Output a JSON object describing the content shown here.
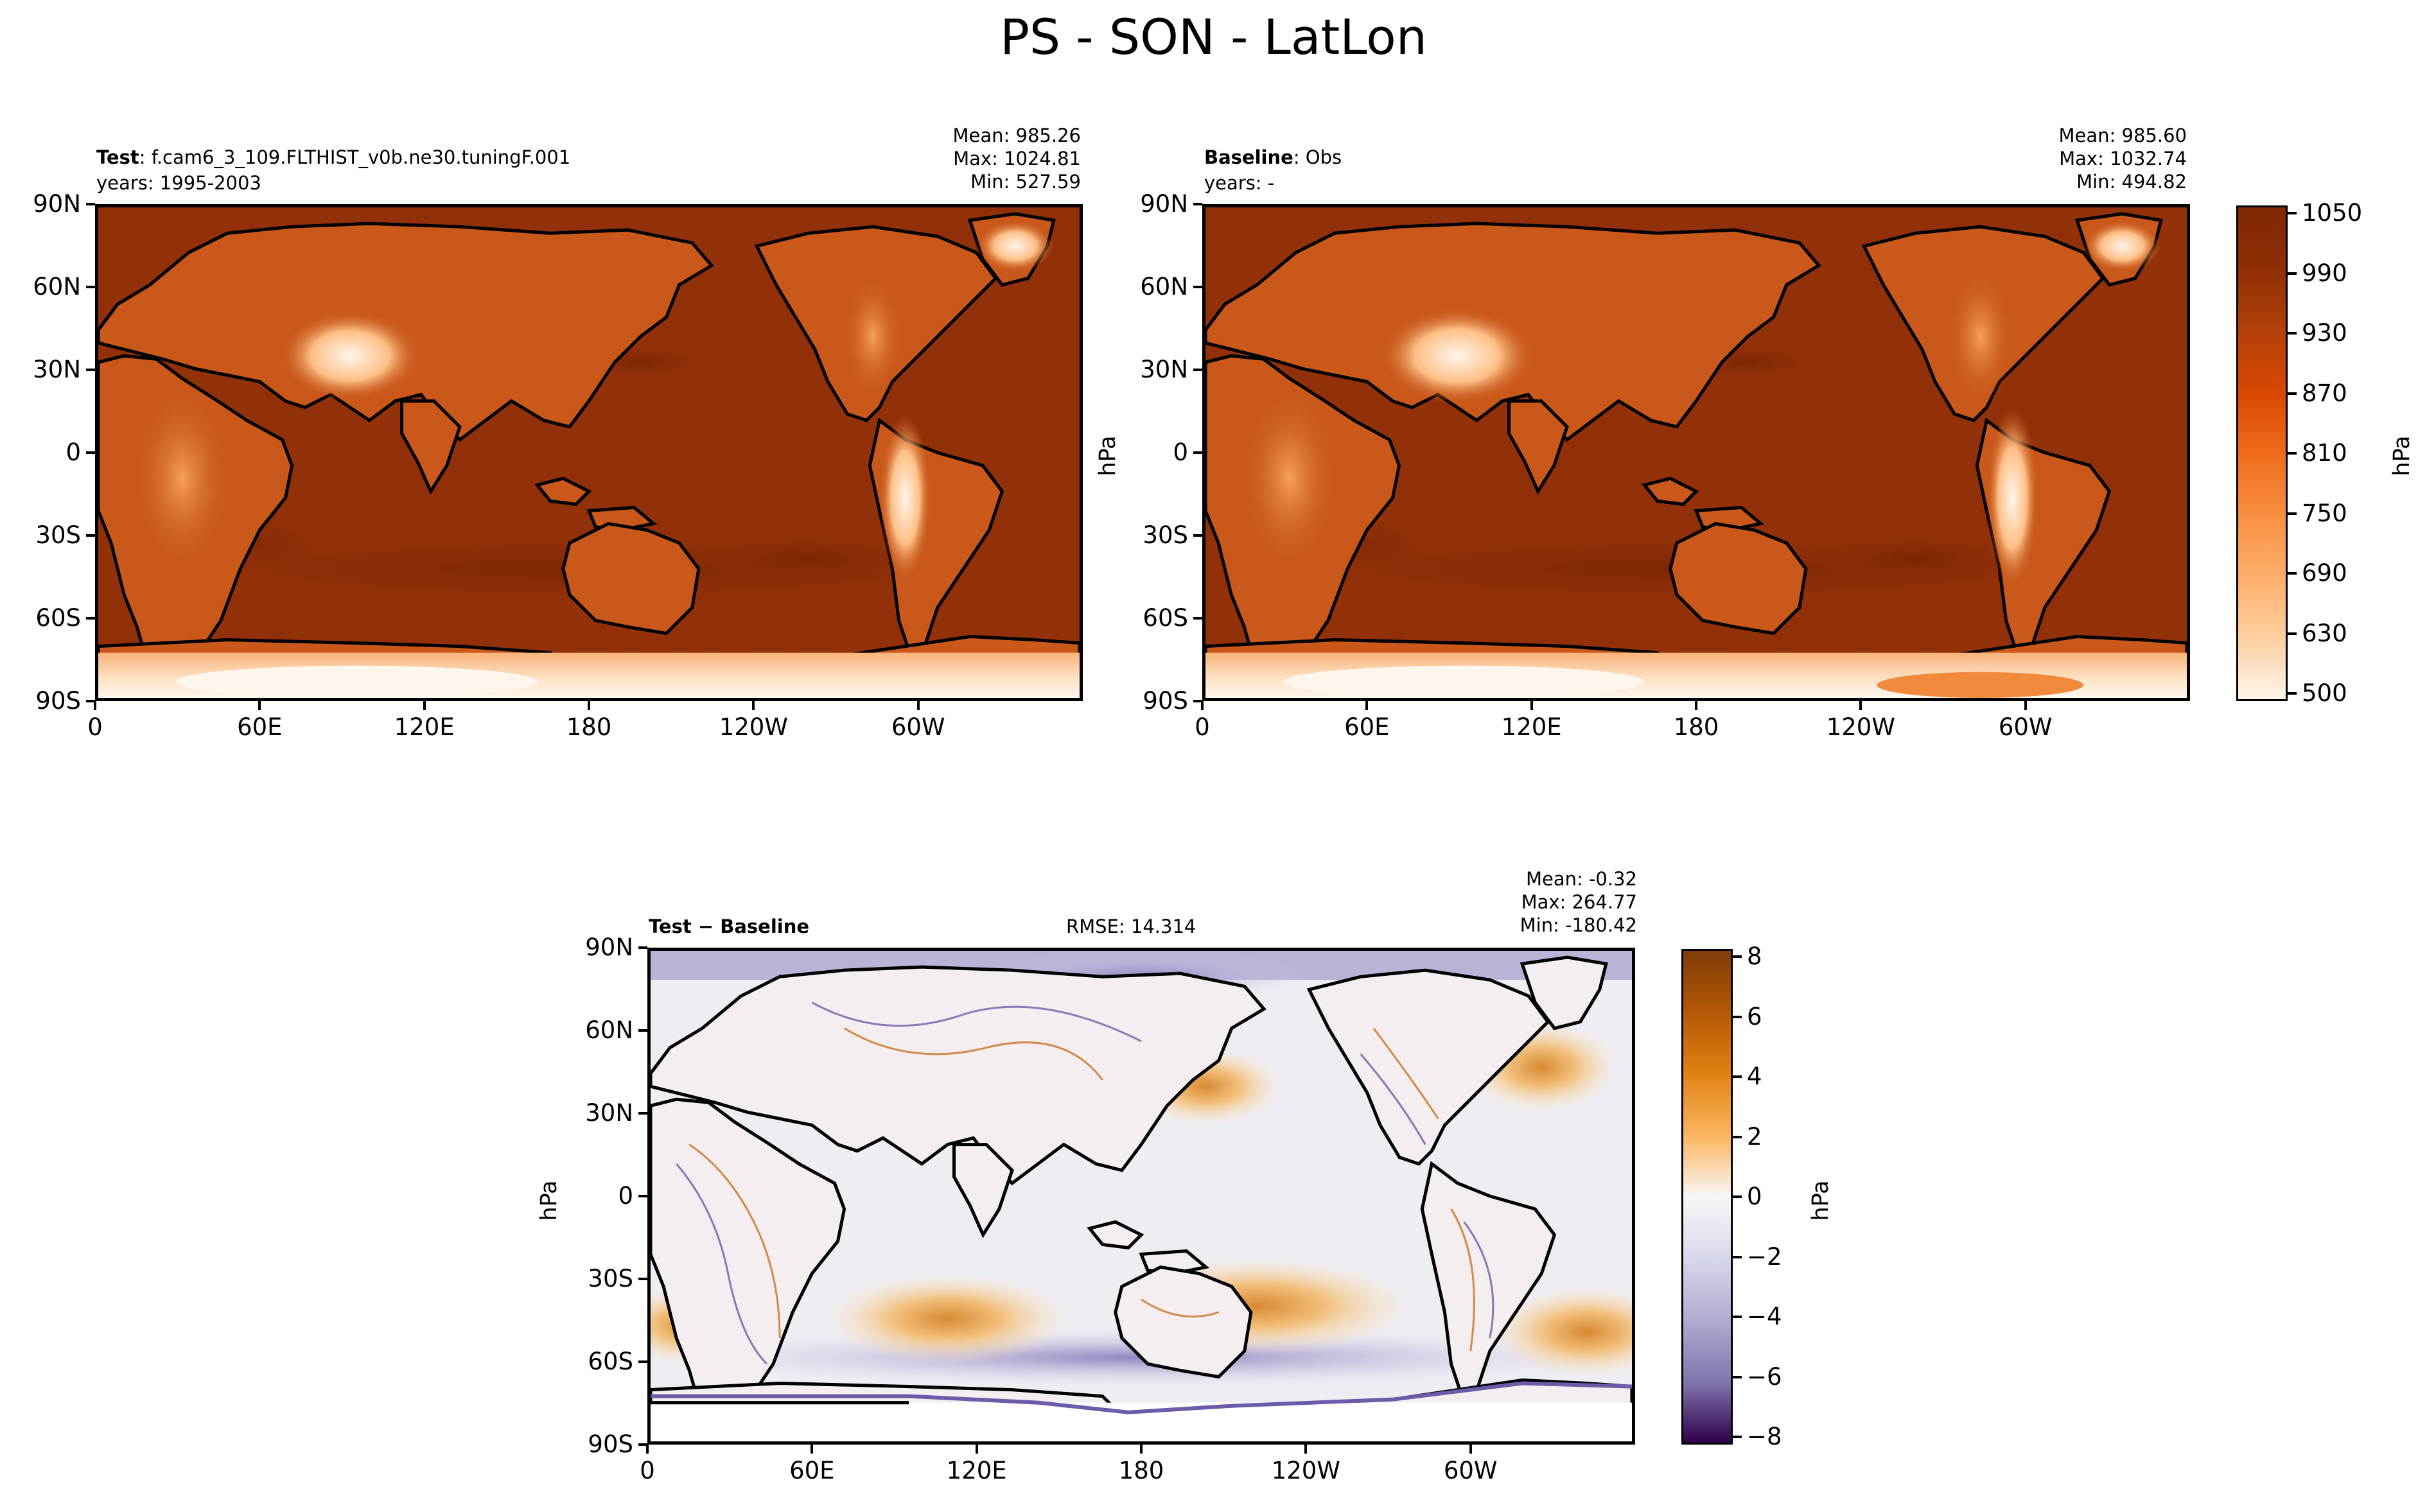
{
  "figure_title": "PS - SON - LatLon",
  "colors": {
    "ocean": "#923009",
    "ocean_deep": "#7f2704",
    "land_low": "#c25212",
    "land_mid": "#ee8137",
    "land_high": "#fdcf9f",
    "ice": "#fff4e8",
    "diff_zero": "#f7f5f2",
    "diff_pos": "#e2a04a",
    "diff_neg": "#6b5ba8"
  },
  "panels": {
    "test": {
      "label": "Test",
      "case": ": f.cam6_3_109.FLTHIST_v0b.ne30.tuningF.001",
      "years": "years: 1995-2003",
      "mean": "Mean: 985.26",
      "max": "Max: 1024.81",
      "min": "Min: 527.59"
    },
    "baseline": {
      "label": "Baseline",
      "case": ": Obs",
      "years": "years: -",
      "mean": "Mean: 985.60",
      "max": "Max: 1032.74",
      "min": "Min: 494.82"
    },
    "diff": {
      "label": "Test − Baseline",
      "rmse": "RMSE: 14.314",
      "mean": "Mean: -0.32",
      "max": "Max: 264.77",
      "min": "Min: -180.42"
    }
  },
  "chart_data": [
    {
      "type": "heatmap",
      "panel": "Test",
      "x_ticks": [
        "0",
        "60E",
        "120E",
        "180",
        "120W",
        "60W"
      ],
      "y_ticks": [
        "90N",
        "60N",
        "30N",
        "0",
        "30S",
        "60S",
        "90S"
      ],
      "xlim": [
        0,
        360
      ],
      "ylim": [
        -90,
        90
      ],
      "stats": {
        "mean": 985.26,
        "max": 1024.81,
        "min": 527.59
      }
    },
    {
      "type": "heatmap",
      "panel": "Baseline",
      "x_ticks": [
        "0",
        "60E",
        "120E",
        "180",
        "120W",
        "60W"
      ],
      "y_ticks": [
        "90N",
        "60N",
        "30N",
        "0",
        "30S",
        "60S",
        "90S"
      ],
      "xlim": [
        0,
        360
      ],
      "ylim": [
        -90,
        90
      ],
      "stats": {
        "mean": 985.6,
        "max": 1032.74,
        "min": 494.82
      },
      "colorbar": {
        "label": "hPa",
        "ticks": [
          "1050",
          "990",
          "930",
          "870",
          "810",
          "750",
          "690",
          "630",
          "500"
        ]
      }
    },
    {
      "type": "heatmap",
      "panel": "Test − Baseline",
      "x_ticks": [
        "0",
        "60E",
        "120E",
        "180",
        "120W",
        "60W"
      ],
      "y_ticks": [
        "90N",
        "60N",
        "30N",
        "0",
        "30S",
        "60S",
        "90S"
      ],
      "xlim": [
        0,
        360
      ],
      "ylim": [
        -90,
        90
      ],
      "stats": {
        "mean": -0.32,
        "max": 264.77,
        "min": -180.42,
        "rmse": 14.314
      },
      "colorbar": {
        "label": "hPa",
        "ticks": [
          "8",
          "6",
          "4",
          "2",
          "0",
          "−2",
          "−4",
          "−6",
          "−8"
        ],
        "range": [
          -9,
          9
        ]
      }
    }
  ],
  "axis_labels": {
    "top_map_ylabel": "hPa",
    "cbar_label": "hPa",
    "diff_map_ylabel": "hPa"
  }
}
